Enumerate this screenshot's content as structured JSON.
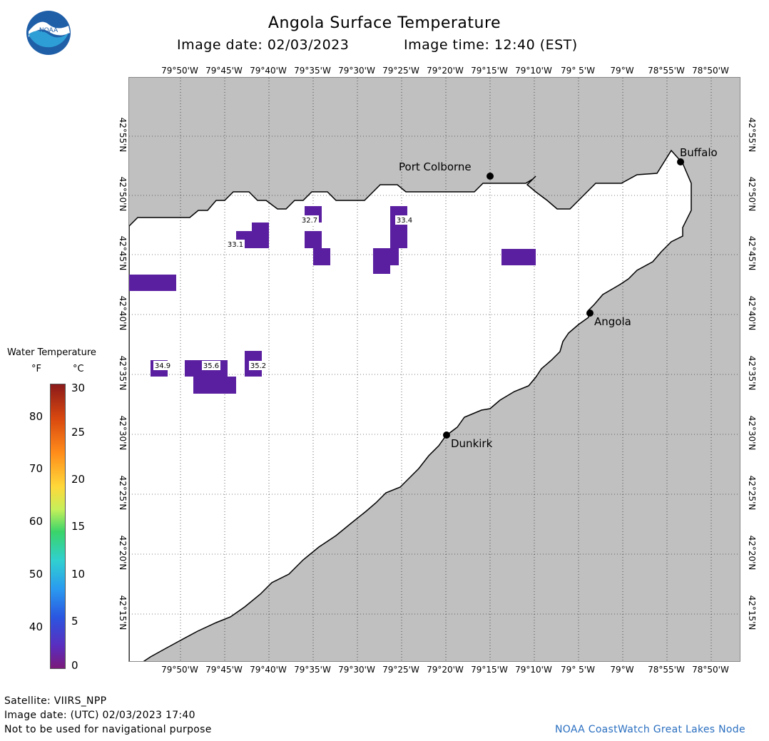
{
  "header": {
    "title": "Angola Surface Temperature",
    "image_date": "Image date: 02/03/2023",
    "image_time": "Image time: 12:40 (EST)"
  },
  "logo": {
    "text": "NOAA"
  },
  "map": {
    "lon_labels": [
      "79°50'W",
      "79°45'W",
      "79°40'W",
      "79°35'W",
      "79°30'W",
      "79°25'W",
      "79°20'W",
      "79°15'W",
      "79°10'W",
      "79° 5'W",
      "79°W",
      "78°55'W",
      "78°50'W"
    ],
    "lat_labels": [
      "42°55'N",
      "42°50'N",
      "42°45'N",
      "42°40'N",
      "42°35'N",
      "42°30'N",
      "42°25'N",
      "42°20'N",
      "42°15'N"
    ],
    "cities": [
      {
        "name": "Buffalo"
      },
      {
        "name": "Port Colborne"
      },
      {
        "name": "Angola"
      },
      {
        "name": "Dunkirk"
      }
    ],
    "temperature_labels": [
      "32.7",
      "33.4",
      "33.1",
      "34.9",
      "35.6",
      "35.2"
    ],
    "land_color": "#c0c0c0",
    "water_color": "#ffffff",
    "pixel_color": "#5a1fa0"
  },
  "legend": {
    "title": "Water Temperature",
    "unit_f": "°F",
    "unit_c": "°C",
    "f_ticks": [
      "80",
      "70",
      "60",
      "50",
      "40"
    ],
    "c_ticks": [
      "30",
      "25",
      "20",
      "15",
      "10",
      "5",
      "0"
    ]
  },
  "footer": {
    "satellite": "Satellite: VIIRS_NPP",
    "utc_date": "Image date: (UTC) 02/03/2023  17:40",
    "disclaimer": "Not to be used for navigational purpose",
    "credit": "NOAA CoastWatch Great Lakes Node"
  }
}
